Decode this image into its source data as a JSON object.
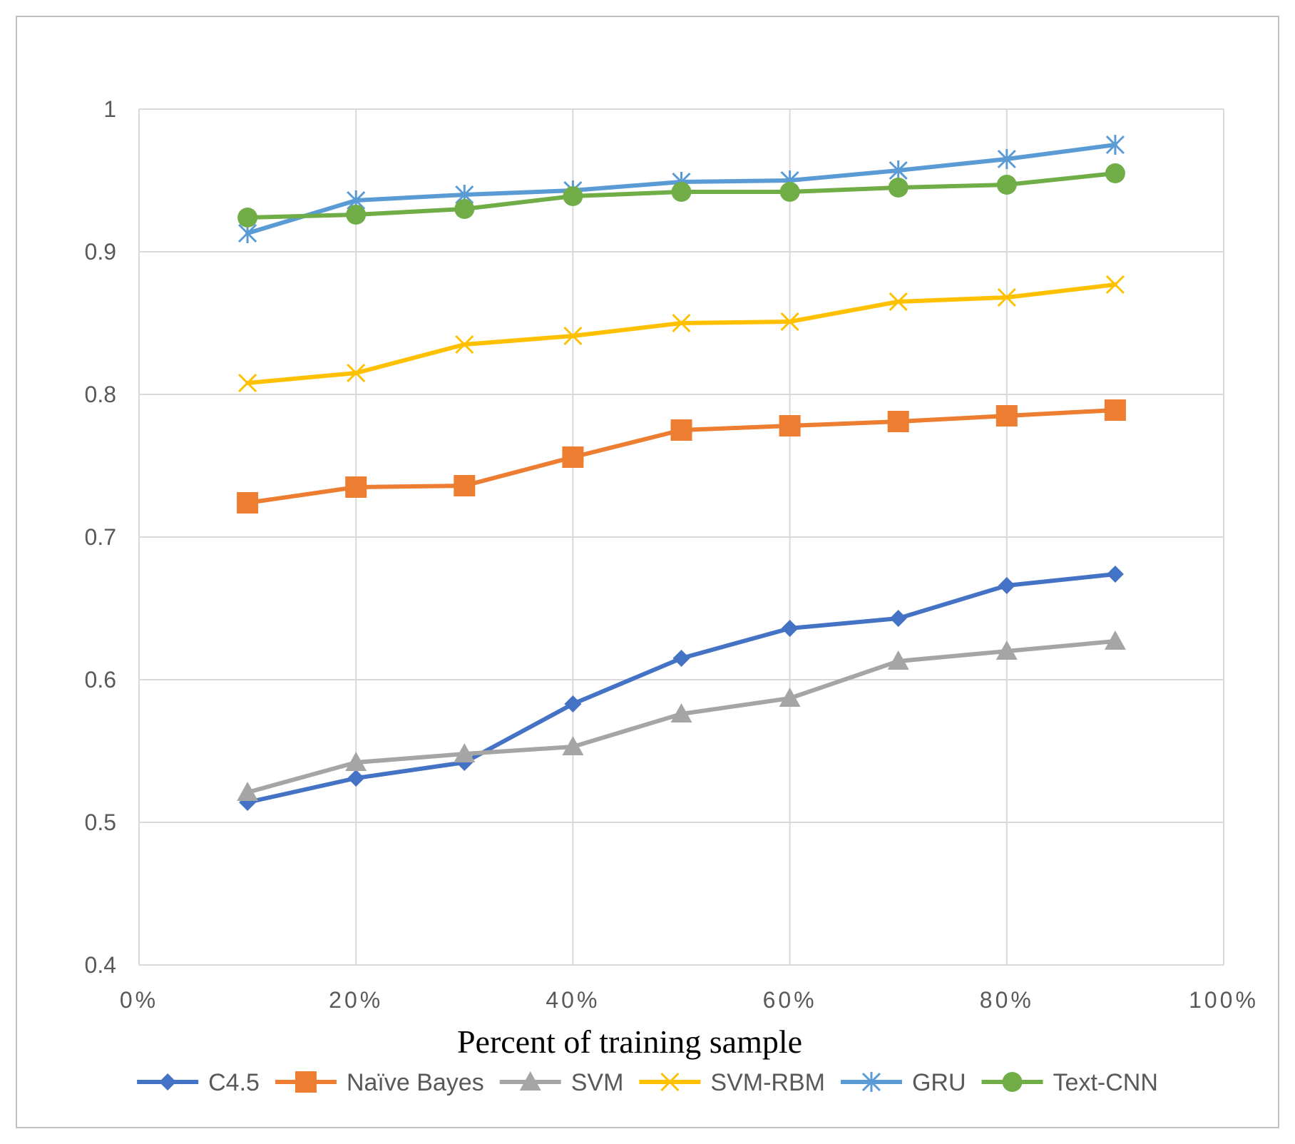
{
  "chart_data": {
    "type": "line",
    "title": "",
    "xlabel": "Percent of training sample",
    "ylabel": "",
    "x": [
      10,
      20,
      30,
      40,
      50,
      60,
      70,
      80,
      90
    ],
    "xlim": [
      0,
      100
    ],
    "ylim": [
      0.4,
      1.0
    ],
    "x_ticks": [
      {
        "value": 0,
        "label": "0%"
      },
      {
        "value": 20,
        "label": "20%"
      },
      {
        "value": 40,
        "label": "40%"
      },
      {
        "value": 60,
        "label": "60%"
      },
      {
        "value": 80,
        "label": "80%"
      },
      {
        "value": 100,
        "label": "100%"
      }
    ],
    "y_ticks": [
      {
        "value": 0.4,
        "label": "0.4"
      },
      {
        "value": 0.5,
        "label": "0.5"
      },
      {
        "value": 0.6,
        "label": "0.6"
      },
      {
        "value": 0.7,
        "label": "0.7"
      },
      {
        "value": 0.8,
        "label": "0.8"
      },
      {
        "value": 0.9,
        "label": "0.9"
      },
      {
        "value": 1.0,
        "label": "1"
      }
    ],
    "grid": true,
    "legend_position": "bottom",
    "series": [
      {
        "name": "C4.5",
        "color": "#4472C4",
        "marker": "diamond",
        "values": [
          0.514,
          0.531,
          0.542,
          0.583,
          0.615,
          0.636,
          0.643,
          0.666,
          0.674
        ]
      },
      {
        "name": "Naïve Bayes",
        "color": "#ED7D31",
        "marker": "square",
        "values": [
          0.724,
          0.735,
          0.736,
          0.756,
          0.775,
          0.778,
          0.781,
          0.785,
          0.789
        ]
      },
      {
        "name": "SVM",
        "color": "#A5A5A5",
        "marker": "triangle",
        "values": [
          0.521,
          0.542,
          0.548,
          0.553,
          0.576,
          0.587,
          0.613,
          0.62,
          0.627
        ]
      },
      {
        "name": "SVM-RBM",
        "color": "#FFC000",
        "marker": "x",
        "values": [
          0.808,
          0.815,
          0.835,
          0.841,
          0.85,
          0.851,
          0.865,
          0.868,
          0.877
        ]
      },
      {
        "name": "GRU",
        "color": "#5B9BD5",
        "marker": "star",
        "values": [
          0.913,
          0.936,
          0.94,
          0.943,
          0.949,
          0.95,
          0.957,
          0.965,
          0.975
        ]
      },
      {
        "name": "Text-CNN",
        "color": "#70AD47",
        "marker": "circle",
        "values": [
          0.924,
          0.926,
          0.93,
          0.939,
          0.942,
          0.942,
          0.945,
          0.947,
          0.955
        ]
      }
    ]
  }
}
